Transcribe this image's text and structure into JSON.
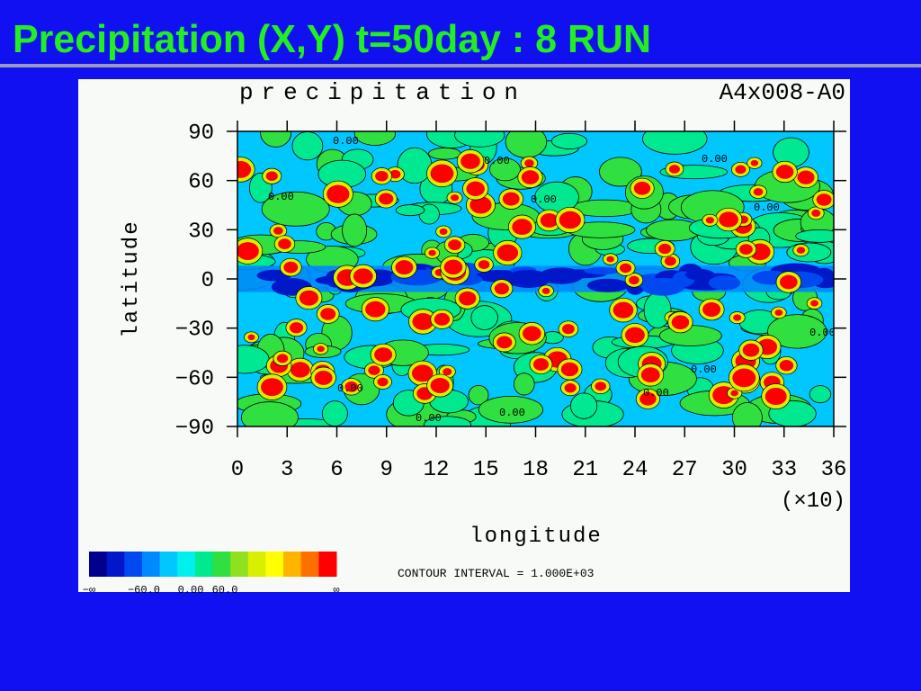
{
  "slide_title": "Precipitation (X,Y) t=50day : 8 RUN",
  "chart_data": {
    "type": "contour",
    "title": "precipitation",
    "subtitle": "A4x008-A0",
    "x_label": "longitude",
    "x_unit_label": "(×10)",
    "y_label": "latitude",
    "xlim": [
      0,
      36
    ],
    "xticks": [
      0,
      3,
      6,
      9,
      12,
      15,
      18,
      21,
      24,
      27,
      30,
      33,
      36
    ],
    "ylim": [
      -90,
      90
    ],
    "yticks": [
      {
        "value": 90,
        "label": "90"
      },
      {
        "value": 60,
        "label": "60"
      },
      {
        "value": 30,
        "label": "30"
      },
      {
        "value": 0,
        "label": "0"
      },
      {
        "value": -30,
        "label": "−30"
      },
      {
        "value": -60,
        "label": "−60"
      },
      {
        "value": -90,
        "label": "−90"
      }
    ],
    "contour_labels": [
      "0.00",
      "0.00",
      "0.00",
      "0.00",
      "0.00",
      "0.00",
      "0.00",
      "0.00",
      "0.00",
      "0.00",
      "0.00",
      "0.00"
    ],
    "contour_interval": "CONTOUR INTERVAL = 1.000E+03",
    "colorbar": {
      "colors": [
        "#00008c",
        "#0018c8",
        "#0048f0",
        "#0088ff",
        "#00c8ff",
        "#00f0f0",
        "#00e890",
        "#30e040",
        "#90e020",
        "#d8f000",
        "#ffff00",
        "#ffb400",
        "#ff7000",
        "#ff0000"
      ],
      "labels": [
        "−∞",
        "−60.0",
        "0.00",
        "60.0",
        "∞"
      ]
    }
  }
}
